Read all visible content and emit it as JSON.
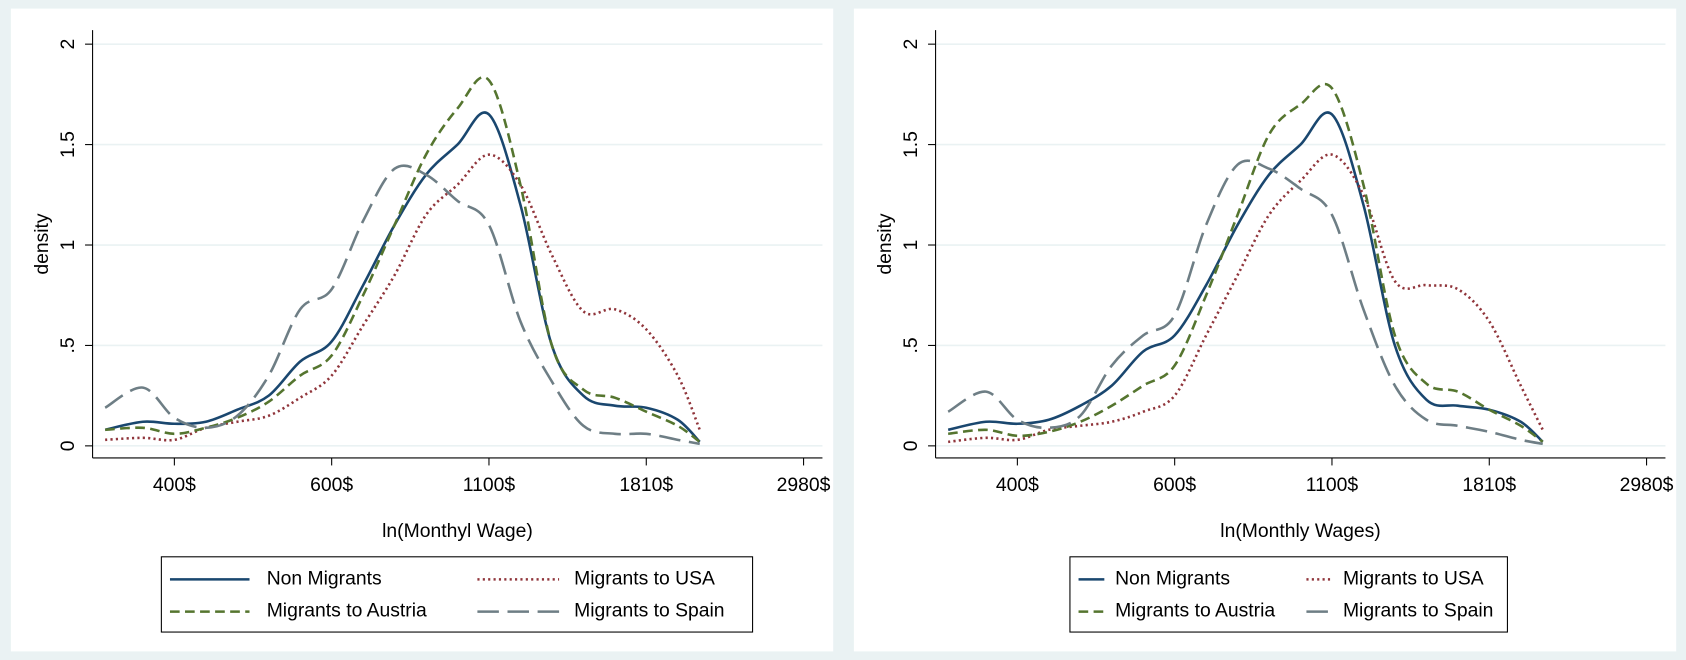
{
  "chart_data": [
    {
      "type": "line",
      "x_label": "ln(Monthyl Wage)",
      "y_label": "density",
      "x": [
        5.78,
        5.9,
        6.0,
        6.1,
        6.2,
        6.3,
        6.4,
        6.5,
        6.6,
        6.7,
        6.8,
        6.9,
        7.0,
        7.1,
        7.2,
        7.3,
        7.4,
        7.5,
        7.6,
        7.67
      ],
      "xlim": [
        5.74,
        8.06
      ],
      "ylim": [
        -0.06,
        2.07
      ],
      "xticks": [
        {
          "value": 6,
          "label": "400$"
        },
        {
          "value": 6.5,
          "label": "600$"
        },
        {
          "value": 7,
          "label": "1100$"
        },
        {
          "value": 7.5,
          "label": "1810$"
        },
        {
          "value": 8,
          "label": "2980$"
        }
      ],
      "yticks": [
        0,
        {
          "value": 0.5,
          "label": ".5"
        },
        1,
        1.5,
        2
      ],
      "grid": true,
      "legend": "bottom",
      "series": [
        {
          "name": "Non Migrants",
          "color": "#1a476f",
          "dash": "solid",
          "values": [
            0.08,
            0.12,
            0.11,
            0.12,
            0.18,
            0.25,
            0.42,
            0.52,
            0.8,
            1.1,
            1.35,
            1.5,
            1.65,
            1.2,
            0.5,
            0.25,
            0.2,
            0.19,
            0.13,
            0.02
          ]
        },
        {
          "name": "Migrants to USA",
          "color": "#90353b",
          "dash": "dotted",
          "values": [
            0.03,
            0.04,
            0.03,
            0.09,
            0.12,
            0.15,
            0.24,
            0.35,
            0.6,
            0.85,
            1.15,
            1.3,
            1.45,
            1.3,
            0.95,
            0.67,
            0.68,
            0.58,
            0.35,
            0.08
          ]
        },
        {
          "name": "Migrants to Austria",
          "color": "#55752f",
          "dash": "dashed",
          "values": [
            0.08,
            0.09,
            0.06,
            0.09,
            0.14,
            0.22,
            0.35,
            0.45,
            0.75,
            1.1,
            1.45,
            1.68,
            1.82,
            1.3,
            0.5,
            0.28,
            0.24,
            0.17,
            0.1,
            0.02
          ]
        },
        {
          "name": "Migrants to Spain",
          "color": "#6e7e85",
          "dash": "longdash",
          "values": [
            0.19,
            0.29,
            0.14,
            0.09,
            0.15,
            0.35,
            0.68,
            0.78,
            1.12,
            1.38,
            1.35,
            1.22,
            1.1,
            0.62,
            0.32,
            0.1,
            0.06,
            0.06,
            0.03,
            0.01
          ]
        }
      ]
    },
    {
      "type": "line",
      "x_label": "ln(Monthly Wages)",
      "y_label": "density",
      "x": [
        5.78,
        5.9,
        6.0,
        6.1,
        6.2,
        6.3,
        6.4,
        6.5,
        6.6,
        6.7,
        6.8,
        6.9,
        7.0,
        7.1,
        7.2,
        7.3,
        7.4,
        7.5,
        7.6,
        7.67
      ],
      "xlim": [
        5.74,
        8.06
      ],
      "ylim": [
        -0.06,
        2.07
      ],
      "xticks": [
        {
          "value": 6,
          "label": "400$"
        },
        {
          "value": 6.5,
          "label": "600$"
        },
        {
          "value": 7,
          "label": "1100$"
        },
        {
          "value": 7.5,
          "label": "1810$"
        },
        {
          "value": 8,
          "label": "2980$"
        }
      ],
      "yticks": [
        0,
        {
          "value": 0.5,
          "label": ".5"
        },
        1,
        1.5,
        2
      ],
      "grid": true,
      "legend": "bottom",
      "series": [
        {
          "name": "Non Migrants",
          "color": "#1a476f",
          "dash": "solid",
          "values": [
            0.08,
            0.12,
            0.11,
            0.13,
            0.2,
            0.3,
            0.47,
            0.55,
            0.8,
            1.1,
            1.35,
            1.5,
            1.65,
            1.2,
            0.5,
            0.23,
            0.2,
            0.18,
            0.12,
            0.02
          ]
        },
        {
          "name": "Migrants to USA",
          "color": "#90353b",
          "dash": "dotted",
          "values": [
            0.02,
            0.04,
            0.03,
            0.08,
            0.1,
            0.12,
            0.17,
            0.25,
            0.55,
            0.85,
            1.15,
            1.32,
            1.45,
            1.25,
            0.82,
            0.8,
            0.78,
            0.62,
            0.3,
            0.08
          ]
        },
        {
          "name": "Migrants to Austria",
          "color": "#55752f",
          "dash": "dashed",
          "values": [
            0.06,
            0.08,
            0.05,
            0.07,
            0.12,
            0.2,
            0.3,
            0.4,
            0.75,
            1.15,
            1.55,
            1.7,
            1.78,
            1.3,
            0.55,
            0.31,
            0.27,
            0.18,
            0.1,
            0.02
          ]
        },
        {
          "name": "Migrants to Spain",
          "color": "#6e7e85",
          "dash": "longdash",
          "values": [
            0.17,
            0.27,
            0.13,
            0.09,
            0.15,
            0.4,
            0.55,
            0.65,
            1.1,
            1.4,
            1.38,
            1.28,
            1.15,
            0.68,
            0.3,
            0.13,
            0.1,
            0.07,
            0.03,
            0.01
          ]
        }
      ]
    }
  ]
}
